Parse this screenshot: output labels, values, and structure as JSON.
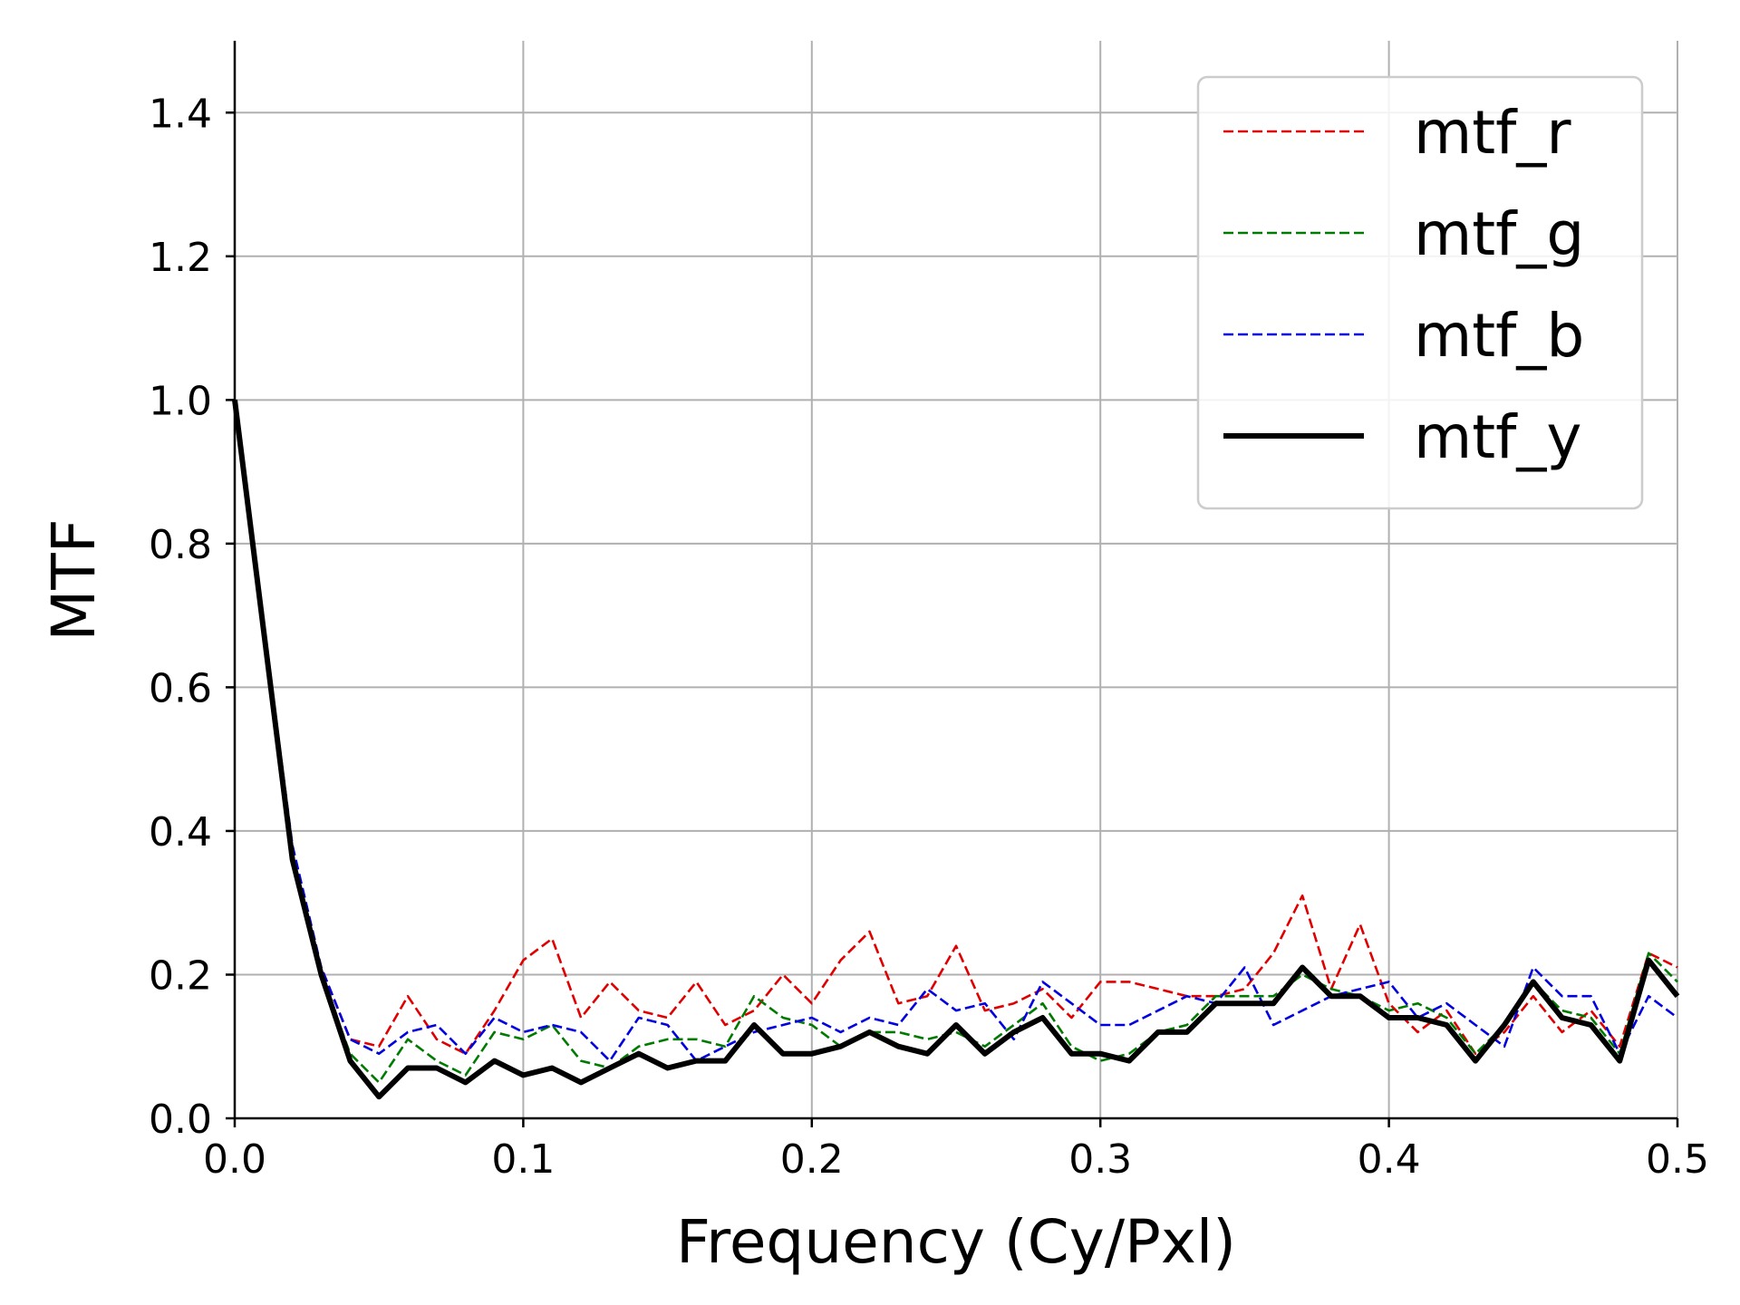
{
  "chart_data": {
    "type": "line",
    "xlabel": "Frequency (Cy/Pxl)",
    "ylabel": "MTF",
    "xlim": [
      0,
      0.5
    ],
    "ylim": [
      0,
      1.5
    ],
    "xticks": [
      "0.0",
      "0.1",
      "0.2",
      "0.3",
      "0.4",
      "0.5"
    ],
    "yticks": [
      "0.0",
      "0.2",
      "0.4",
      "0.6",
      "0.8",
      "1.0",
      "1.2",
      "1.4"
    ],
    "grid": true,
    "legend_position": "top-right",
    "x": [
      0,
      0.01,
      0.02,
      0.03,
      0.04,
      0.05,
      0.06,
      0.07,
      0.08,
      0.09,
      0.1,
      0.11,
      0.12,
      0.13,
      0.14,
      0.15,
      0.16,
      0.17,
      0.18,
      0.19,
      0.2,
      0.21,
      0.22,
      0.23,
      0.24,
      0.25,
      0.26,
      0.27,
      0.28,
      0.29,
      0.3,
      0.31,
      0.32,
      0.33,
      0.34,
      0.35,
      0.36,
      0.37,
      0.38,
      0.39,
      0.4,
      0.41,
      0.42,
      0.43,
      0.44,
      0.45,
      0.46,
      0.47,
      0.48,
      0.49,
      0.5
    ],
    "series": [
      {
        "name": "mtf_r",
        "color": "#e00000",
        "style": "dashed",
        "values": [
          1.0,
          0.68,
          0.37,
          0.21,
          0.11,
          0.1,
          0.17,
          0.11,
          0.09,
          0.15,
          0.22,
          0.25,
          0.14,
          0.19,
          0.15,
          0.14,
          0.19,
          0.13,
          0.15,
          0.2,
          0.16,
          0.22,
          0.26,
          0.16,
          0.17,
          0.24,
          0.15,
          0.16,
          0.18,
          0.14,
          0.19,
          0.19,
          0.18,
          0.17,
          0.17,
          0.18,
          0.23,
          0.31,
          0.18,
          0.27,
          0.16,
          0.12,
          0.15,
          0.09,
          0.12,
          0.17,
          0.12,
          0.15,
          0.1,
          0.23,
          0.21
        ]
      },
      {
        "name": "mtf_g",
        "color": "#007a00",
        "style": "dashed",
        "values": [
          1.0,
          0.68,
          0.36,
          0.2,
          0.09,
          0.05,
          0.11,
          0.08,
          0.06,
          0.12,
          0.11,
          0.13,
          0.08,
          0.07,
          0.1,
          0.11,
          0.11,
          0.1,
          0.17,
          0.14,
          0.13,
          0.1,
          0.12,
          0.12,
          0.11,
          0.12,
          0.1,
          0.13,
          0.16,
          0.1,
          0.08,
          0.09,
          0.12,
          0.13,
          0.17,
          0.17,
          0.17,
          0.2,
          0.18,
          0.17,
          0.15,
          0.16,
          0.14,
          0.09,
          0.13,
          0.19,
          0.15,
          0.14,
          0.09,
          0.23,
          0.19
        ]
      },
      {
        "name": "mtf_b",
        "color": "#0000e0",
        "style": "dashed",
        "values": [
          1.0,
          0.69,
          0.38,
          0.21,
          0.11,
          0.09,
          0.12,
          0.13,
          0.09,
          0.14,
          0.12,
          0.13,
          0.12,
          0.08,
          0.14,
          0.13,
          0.08,
          0.1,
          0.12,
          0.13,
          0.14,
          0.12,
          0.14,
          0.13,
          0.18,
          0.15,
          0.16,
          0.11,
          0.19,
          0.16,
          0.13,
          0.13,
          0.15,
          0.17,
          0.16,
          0.21,
          0.13,
          0.15,
          0.17,
          0.18,
          0.19,
          0.14,
          0.16,
          0.13,
          0.1,
          0.21,
          0.17,
          0.17,
          0.09,
          0.17,
          0.14
        ]
      },
      {
        "name": "mtf_y",
        "color": "#000000",
        "style": "solid",
        "values": [
          1.0,
          0.68,
          0.36,
          0.2,
          0.08,
          0.03,
          0.07,
          0.07,
          0.05,
          0.08,
          0.06,
          0.07,
          0.05,
          0.07,
          0.09,
          0.07,
          0.08,
          0.08,
          0.13,
          0.09,
          0.09,
          0.1,
          0.12,
          0.1,
          0.09,
          0.13,
          0.09,
          0.12,
          0.14,
          0.09,
          0.09,
          0.08,
          0.12,
          0.12,
          0.16,
          0.16,
          0.16,
          0.21,
          0.17,
          0.17,
          0.14,
          0.14,
          0.13,
          0.08,
          0.13,
          0.19,
          0.14,
          0.13,
          0.08,
          0.22,
          0.17
        ]
      }
    ]
  }
}
